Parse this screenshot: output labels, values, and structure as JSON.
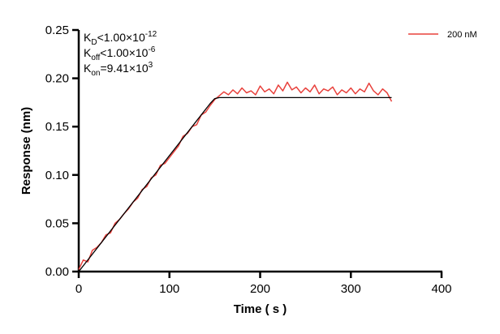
{
  "chart_data": {
    "type": "line",
    "xlabel": "Time ( s )",
    "ylabel": "Response (nm)",
    "xlim": [
      0,
      400
    ],
    "ylim": [
      0,
      0.25
    ],
    "xticks": [
      "0",
      "100",
      "200",
      "300",
      "400"
    ],
    "yticks": [
      "0.00",
      "0.05",
      "0.10",
      "0.15",
      "0.20",
      "0.25"
    ],
    "grid": false,
    "legend_position": "top-right",
    "annotations": [
      {
        "base": "K",
        "sub": "D",
        "rel": "<1.00×10",
        "sup": "-12"
      },
      {
        "base": "K",
        "sub": "off",
        "rel": "<1.00×10",
        "sup": "-6"
      },
      {
        "base": "K",
        "sub": "on",
        "rel": "=9.41×10",
        "sup": "3"
      }
    ],
    "series": [
      {
        "name": "200 nM",
        "color": "#e8413c",
        "x": [
          0,
          5,
          10,
          15,
          20,
          25,
          30,
          35,
          40,
          45,
          50,
          55,
          60,
          65,
          70,
          75,
          80,
          85,
          90,
          95,
          100,
          105,
          110,
          115,
          120,
          125,
          130,
          135,
          140,
          145,
          150,
          155,
          160,
          165,
          170,
          175,
          180,
          185,
          190,
          195,
          200,
          205,
          210,
          215,
          220,
          225,
          230,
          235,
          240,
          245,
          250,
          255,
          260,
          265,
          270,
          275,
          280,
          285,
          290,
          295,
          300,
          305,
          310,
          315,
          320,
          325,
          330,
          335,
          340,
          345
        ],
        "y": [
          0.002,
          0.012,
          0.01,
          0.022,
          0.025,
          0.03,
          0.038,
          0.04,
          0.05,
          0.054,
          0.06,
          0.065,
          0.072,
          0.076,
          0.085,
          0.088,
          0.097,
          0.1,
          0.11,
          0.112,
          0.118,
          0.124,
          0.13,
          0.14,
          0.143,
          0.15,
          0.152,
          0.162,
          0.165,
          0.172,
          0.178,
          0.182,
          0.186,
          0.183,
          0.188,
          0.184,
          0.19,
          0.185,
          0.187,
          0.183,
          0.192,
          0.186,
          0.189,
          0.184,
          0.193,
          0.187,
          0.196,
          0.188,
          0.191,
          0.185,
          0.19,
          0.186,
          0.193,
          0.184,
          0.189,
          0.187,
          0.191,
          0.183,
          0.188,
          0.185,
          0.19,
          0.184,
          0.189,
          0.186,
          0.195,
          0.187,
          0.183,
          0.189,
          0.185,
          0.176
        ]
      },
      {
        "color": "#000000",
        "x": [
          0,
          145,
          150,
          155,
          345
        ],
        "y": [
          0,
          0.174,
          0.179,
          0.18,
          0.18
        ]
      }
    ]
  }
}
